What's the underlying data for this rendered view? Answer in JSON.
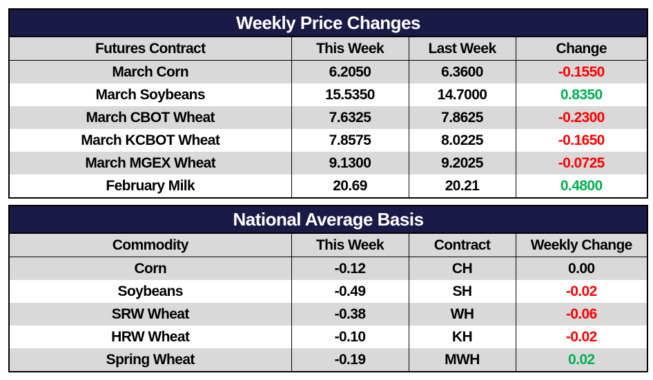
{
  "weekly": {
    "title": "Weekly Price Changes",
    "headers": [
      "Futures Contract",
      "This Week",
      "Last Week",
      "Change"
    ],
    "rows": [
      {
        "contract": "March Corn",
        "this_week": "6.2050",
        "last_week": "6.3600",
        "change": "-0.1550",
        "dir": "neg"
      },
      {
        "contract": "March Soybeans",
        "this_week": "15.5350",
        "last_week": "14.7000",
        "change": "0.8350",
        "dir": "pos"
      },
      {
        "contract": "March CBOT Wheat",
        "this_week": "7.6325",
        "last_week": "7.8625",
        "change": "-0.2300",
        "dir": "neg"
      },
      {
        "contract": "March KCBOT Wheat",
        "this_week": "7.8575",
        "last_week": "8.0225",
        "change": "-0.1650",
        "dir": "neg"
      },
      {
        "contract": "March MGEX Wheat",
        "this_week": "9.1300",
        "last_week": "9.2025",
        "change": "-0.0725",
        "dir": "neg"
      },
      {
        "contract": "February Milk",
        "this_week": "20.69",
        "last_week": "20.21",
        "change": "0.4800",
        "dir": "pos"
      }
    ]
  },
  "basis": {
    "title": "National Average Basis",
    "headers": [
      "Commodity",
      "This Week",
      "Contract",
      "Weekly Change"
    ],
    "rows": [
      {
        "commodity": "Corn",
        "this_week": "-0.12",
        "contract": "CH",
        "change": "0.00",
        "dir": "zero"
      },
      {
        "commodity": "Soybeans",
        "this_week": "-0.49",
        "contract": "SH",
        "change": "-0.02",
        "dir": "neg"
      },
      {
        "commodity": "SRW Wheat",
        "this_week": "-0.38",
        "contract": "WH",
        "change": "-0.06",
        "dir": "neg"
      },
      {
        "commodity": "HRW Wheat",
        "this_week": "-0.10",
        "contract": "KH",
        "change": "-0.02",
        "dir": "neg"
      },
      {
        "commodity": "Spring Wheat",
        "this_week": "-0.19",
        "contract": "MWH",
        "change": "0.02",
        "dir": "pos"
      }
    ]
  },
  "colors": {
    "header_bg": "#1a1a46",
    "stripe": "#d9d9d9",
    "negative": "#ff0000",
    "positive": "#00b050"
  }
}
